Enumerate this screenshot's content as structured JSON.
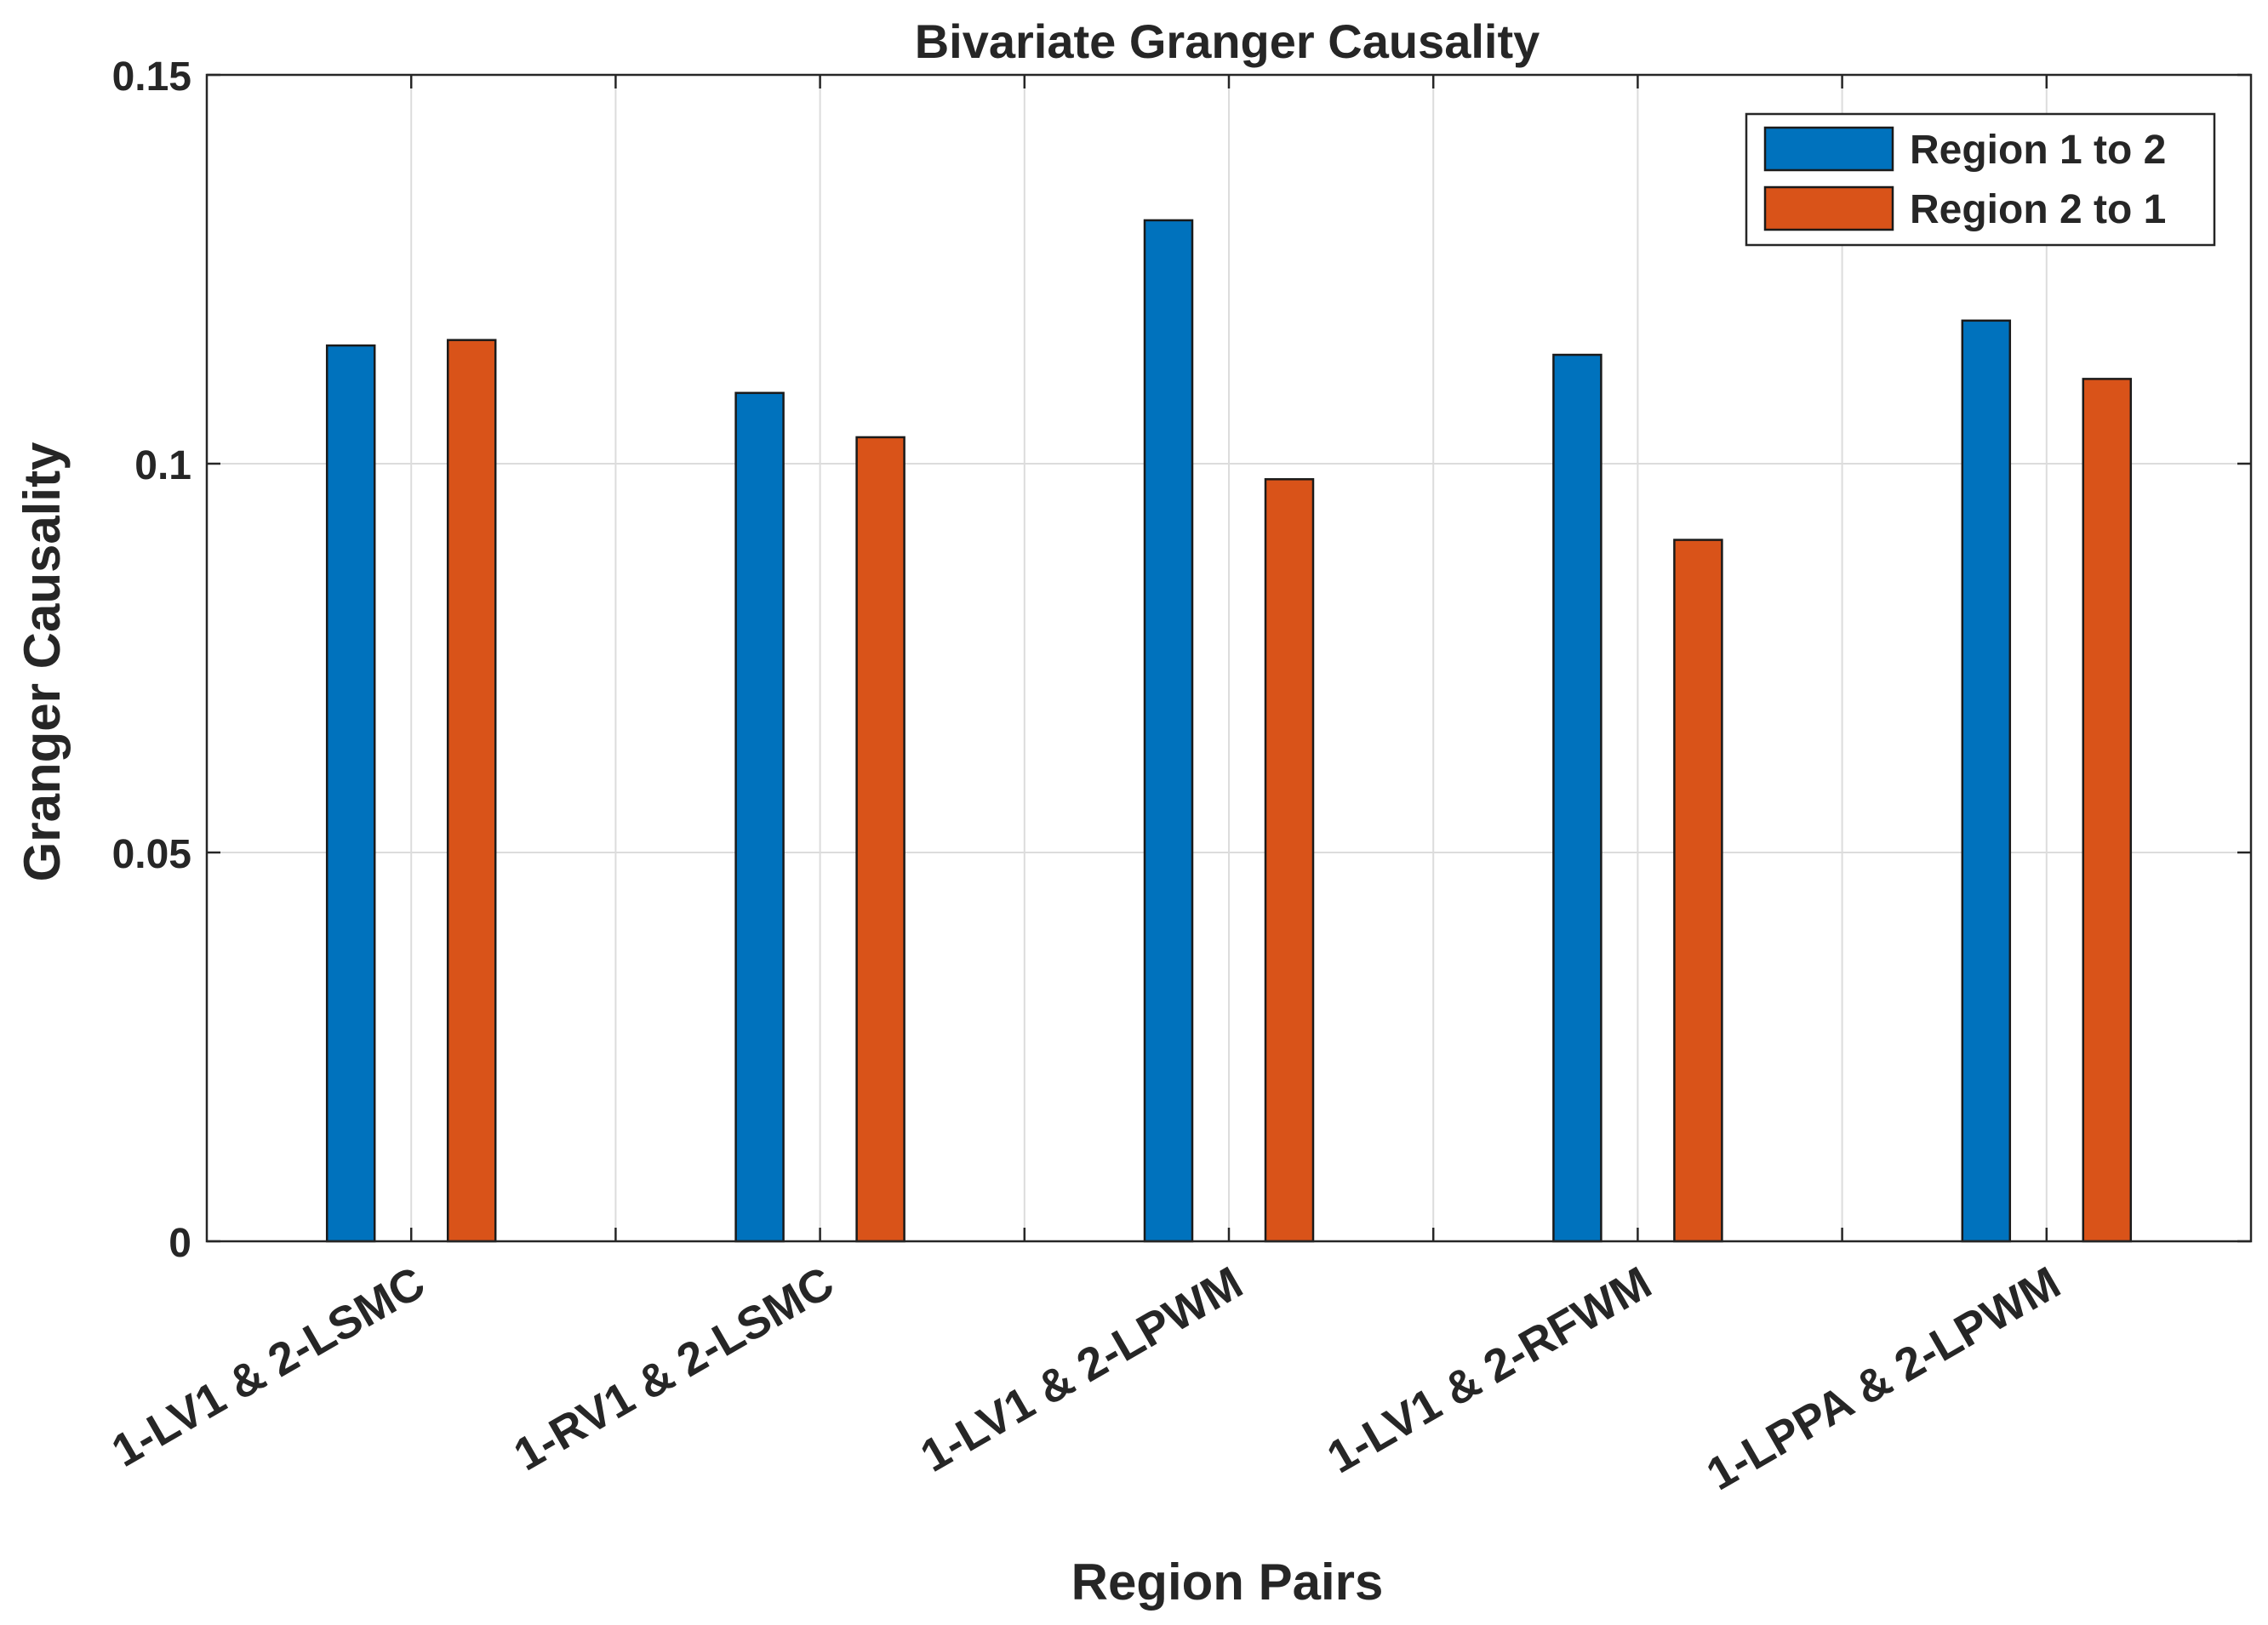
{
  "chart_data": {
    "type": "bar",
    "title": "Bivariate Granger Causality",
    "xlabel": "Region Pairs",
    "ylabel": "Granger Causality",
    "categories": [
      "1-LV1 & 2-LSMC",
      "1-RV1 & 2-LSMC",
      "1-LV1 & 2-LPWM",
      "1-LV1 & 2-RFWM",
      "1-LPPA & 2-LPWM"
    ],
    "series": [
      {
        "name": "Region 1 to 2",
        "color": "#0072BD",
        "values": [
          0.1152,
          0.1091,
          0.1313,
          0.114,
          0.1184
        ]
      },
      {
        "name": "Region 2 to 1",
        "color": "#D95319",
        "values": [
          0.1159,
          0.1034,
          0.098,
          0.0902,
          0.1109
        ]
      }
    ],
    "ylim": [
      0,
      0.15
    ],
    "yticks": [
      0,
      0.05,
      0.1,
      0.15
    ],
    "ytick_labels": [
      "0",
      "0.05",
      "0.1",
      "0.15"
    ],
    "grid": true,
    "legend_position": "top-right"
  }
}
